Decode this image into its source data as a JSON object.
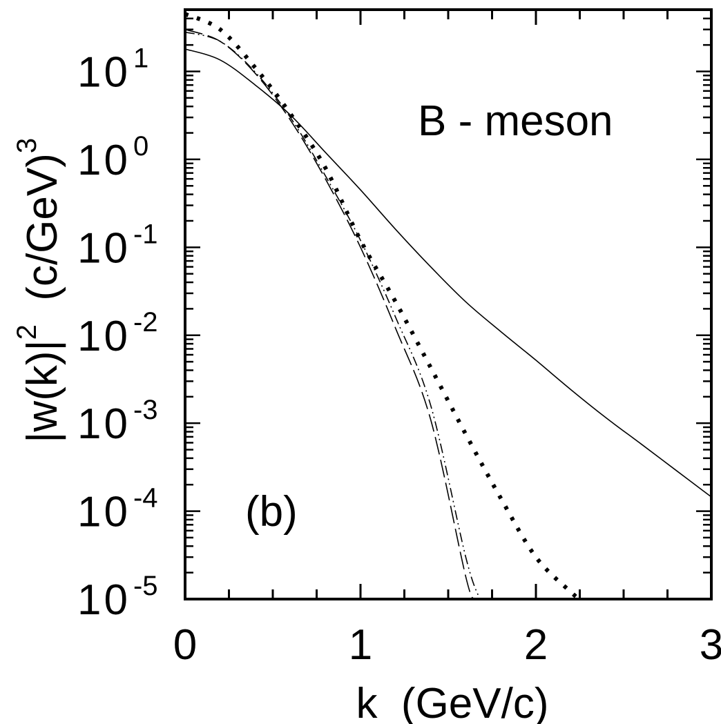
{
  "chart_data": {
    "type": "line",
    "xlabel": "k  (GeV/c)",
    "ylabel": {
      "prefix": "|w(k)|",
      "sup": "2",
      "unit": "(c/GeV)",
      "unit_sup": "3"
    },
    "annotations": {
      "title": "B  -  meson",
      "panel": "(b)"
    },
    "x_ticks": [
      "0",
      "1",
      "2",
      "3"
    ],
    "y_ticks": [
      {
        "base": "10",
        "exp": "1"
      },
      {
        "base": "10",
        "exp": "0"
      },
      {
        "base": "10",
        "exp": "-1"
      },
      {
        "base": "10",
        "exp": "-2"
      },
      {
        "base": "10",
        "exp": "-3"
      },
      {
        "base": "10",
        "exp": "-4"
      },
      {
        "base": "10",
        "exp": "-5"
      }
    ],
    "xlim": [
      0,
      3
    ],
    "ylim": [
      1e-05,
      50
    ],
    "yscale": "log",
    "grid": false,
    "series": [
      {
        "style": "solid",
        "x": [
          0,
          0.2,
          0.4,
          0.6,
          0.8,
          1.0,
          1.2,
          1.4,
          1.6,
          1.8,
          2.0,
          2.2,
          2.4,
          2.6,
          2.8,
          3.0
        ],
        "y": [
          18,
          13.5,
          7,
          3.2,
          1.2,
          0.45,
          0.16,
          0.06,
          0.024,
          0.011,
          0.0052,
          0.0024,
          0.00115,
          0.00058,
          0.00029,
          0.000145
        ]
      },
      {
        "style": "dashed",
        "x": [
          0,
          0.2,
          0.4,
          0.6,
          0.8,
          1.0,
          1.2,
          1.4,
          1.6,
          1.65
        ],
        "y": [
          30,
          22,
          9.5,
          2.8,
          0.6,
          0.1,
          0.012,
          0.0011,
          1.8e-05,
          1e-05
        ]
      },
      {
        "style": "dash-dot-dot",
        "x": [
          0,
          0.2,
          0.4,
          0.6,
          0.8,
          1.0,
          1.2,
          1.4,
          1.6,
          1.68
        ],
        "y": [
          28,
          22,
          9.8,
          3.0,
          0.65,
          0.12,
          0.016,
          0.0016,
          3e-05,
          1e-05
        ]
      },
      {
        "style": "dotted",
        "x": [
          0,
          0.2,
          0.4,
          0.6,
          0.8,
          1.0,
          1.2,
          1.4,
          1.6,
          1.8,
          2.0,
          2.2,
          2.25
        ],
        "y": [
          45,
          30,
          11,
          3.3,
          0.8,
          0.12,
          0.024,
          0.0043,
          0.00075,
          0.00014,
          3e-05,
          1.2e-05,
          1e-05
        ]
      }
    ]
  }
}
